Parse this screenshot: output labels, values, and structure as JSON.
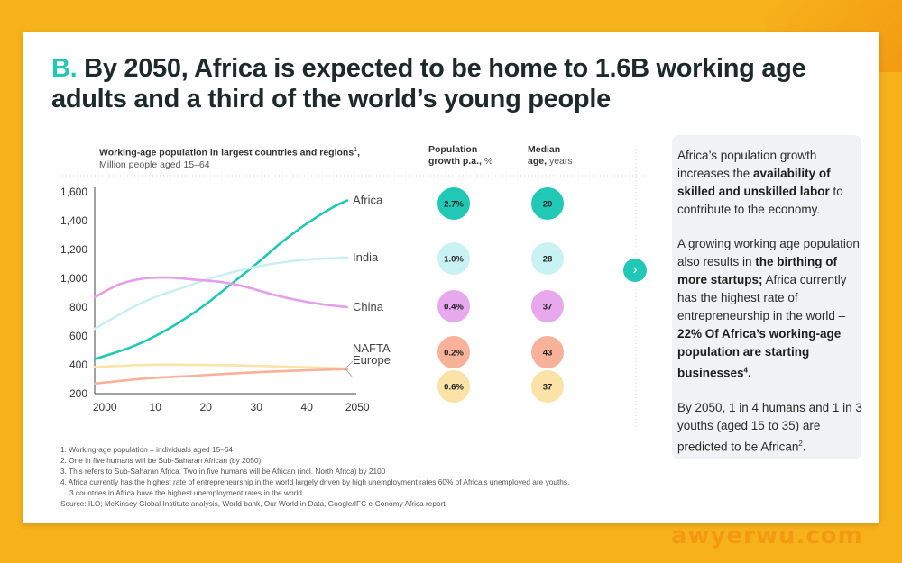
{
  "headline": {
    "letter": "B.",
    "text": "By 2050, Africa is expected to be home to 1.6B working age adults and a third of the world’s young people"
  },
  "chart_title": {
    "main": "Working-age population in largest countries and regions",
    "sup": "1",
    "suffix": ",",
    "sub": "Million people aged 15–64"
  },
  "growth_header": {
    "main": "Population",
    "sub": "growth p.a.,",
    "unit": "%"
  },
  "median_header": {
    "main": "Median",
    "sub": "age,",
    "unit": "years"
  },
  "chart_data": {
    "type": "line",
    "title": "Working-age population in largest countries and regions",
    "ylabel": "Million people aged 15–64",
    "x_tick_labels": [
      "2000",
      "10",
      "20",
      "30",
      "40",
      "2050"
    ],
    "x_ticks": [
      2000,
      2010,
      2020,
      2030,
      2040,
      2050
    ],
    "xlim": [
      1998,
      2048
    ],
    "ylim": [
      200,
      1600
    ],
    "y_ticks": [
      200,
      400,
      600,
      800,
      1000,
      1200,
      1400,
      1600
    ],
    "y_tick_labels": [
      "200",
      "400",
      "600",
      "800",
      "1,000",
      "1,200",
      "1,400",
      "1,600"
    ],
    "series": [
      {
        "name": "Africa",
        "color": "#21C8B6",
        "growth": "2.7%",
        "median_age": "20",
        "growth_bg": "#21C8B6",
        "median_bg": "#21C8B6",
        "x": [
          1998,
          2005,
          2010,
          2015,
          2020,
          2025,
          2030,
          2035,
          2040,
          2045,
          2048
        ],
        "y": [
          440,
          520,
          600,
          700,
          820,
          960,
          1100,
          1250,
          1380,
          1490,
          1540
        ]
      },
      {
        "name": "India",
        "color": "#C9F0F0",
        "growth": "1.0%",
        "median_age": "28",
        "growth_bg": "#C9F3F3",
        "median_bg": "#C9F3F3",
        "x": [
          1998,
          2005,
          2010,
          2015,
          2020,
          2025,
          2030,
          2035,
          2040,
          2045,
          2048
        ],
        "y": [
          650,
          790,
          870,
          930,
          990,
          1040,
          1080,
          1110,
          1130,
          1140,
          1145
        ]
      },
      {
        "name": "China",
        "color": "#E59EEB",
        "growth": "0.4%",
        "median_age": "37",
        "growth_bg": "#E7A8EE",
        "median_bg": "#E7A8EE",
        "x": [
          1998,
          2003,
          2008,
          2013,
          2018,
          2023,
          2028,
          2033,
          2038,
          2043,
          2048
        ],
        "y": [
          870,
          960,
          1000,
          1005,
          990,
          975,
          940,
          890,
          850,
          820,
          800
        ]
      },
      {
        "name": "NAFTA",
        "color": "#FBE3A7",
        "growth": "0.2%",
        "median_age": "43",
        "growth_bg": "#F8B29A",
        "median_bg": "#F8B29A",
        "x": [
          1998,
          2008,
          2018,
          2028,
          2038,
          2048
        ],
        "y": [
          385,
          400,
          400,
          395,
          385,
          375
        ]
      },
      {
        "name": "Europe",
        "color": "#F8B29A",
        "growth": "0.6%",
        "median_age": "37",
        "growth_bg": "#FBE3A7",
        "median_bg": "#FBE3A7",
        "x": [
          1998,
          2008,
          2018,
          2028,
          2038,
          2048
        ],
        "y": [
          270,
          305,
          325,
          345,
          360,
          370
        ]
      }
    ]
  },
  "side_panel": {
    "p1": {
      "t1": "Africa’s population growth increases the ",
      "b1": "availability of skilled and unskilled labor",
      "t2": " to contribute to the economy."
    },
    "p2": {
      "t1": "A growing working age population also results in ",
      "b1": "the birthing of more startups;",
      "t2": " Africa currently has the highest rate of entrepreneurship in the world – ",
      "b2": "22% Of Africa’s working-age population are starting businesses",
      "sup": "4",
      "t3": "."
    },
    "p3": {
      "t1": "By 2050, 1 in 4 humans and 1 in 3 youths (aged 15 to 35) are predicted to be African",
      "sup": "2",
      "t2": "."
    }
  },
  "arrow_button": {
    "glyph": "›"
  },
  "footnotes": [
    "1.  Working-age population = individuals aged 15–64",
    "2.  One in five humans will be Sub-Saharan African (by 2050)",
    "3.  This refers to Sub-Saharan Africa. Two in five humans will be African (incl. North Africa) by 2100",
    "4.  Africa currently has the highest rate of entrepreneurship in the world largely driven by high unemployment rates 60% of Africa’s unemployed are youths.",
    "      3 countries in Africa have the highest unemployment rates in the world",
    "Source: ILO; McKinsey Global Institute analysis, World bank, Our World in Data, Google/IFC e-Conomy Africa report"
  ],
  "watermark": "awyerwu.com"
}
